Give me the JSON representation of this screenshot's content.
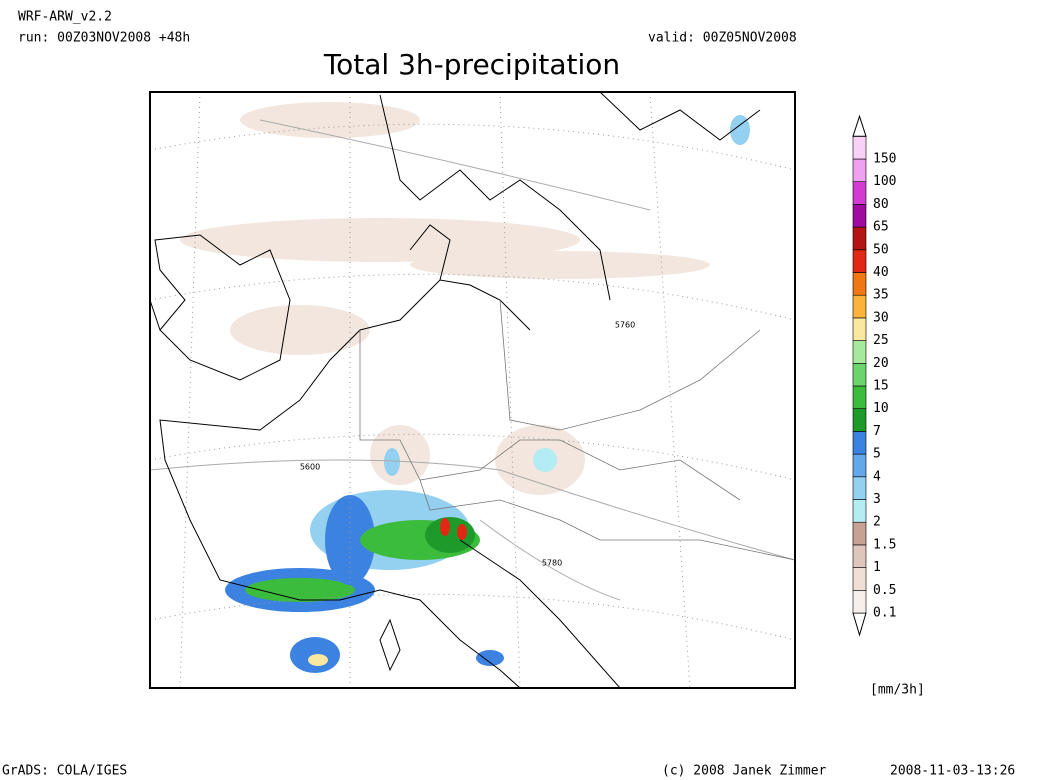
{
  "header": {
    "model": "WRF-ARW_v2.2",
    "run": "run: 00Z03NOV2008 +48h",
    "valid": "valid: 00Z05NOV2008"
  },
  "title": "Total 3h-precipitation",
  "contour_labels": [
    "5760",
    "5600",
    "5780"
  ],
  "colorbar": {
    "unit": "[mm/3h]",
    "levels": [
      {
        "label": "0.1",
        "color": "#f7efea"
      },
      {
        "label": "0.5",
        "color": "#efdfd5"
      },
      {
        "label": "1",
        "color": "#e0c6ba"
      },
      {
        "label": "1.5",
        "color": "#c8a195"
      },
      {
        "label": "2",
        "color": "#b4ecf4"
      },
      {
        "label": "3",
        "color": "#94d0f0"
      },
      {
        "label": "4",
        "color": "#64a8ea"
      },
      {
        "label": "5",
        "color": "#3c82e0"
      },
      {
        "label": "7",
        "color": "#1e9a2a"
      },
      {
        "label": "10",
        "color": "#3cbc3c"
      },
      {
        "label": "15",
        "color": "#6cd46c"
      },
      {
        "label": "20",
        "color": "#a6e89c"
      },
      {
        "label": "25",
        "color": "#fae8a0"
      },
      {
        "label": "30",
        "color": "#fab43c"
      },
      {
        "label": "35",
        "color": "#f07814"
      },
      {
        "label": "40",
        "color": "#e02814"
      },
      {
        "label": "50",
        "color": "#b41414"
      },
      {
        "label": "65",
        "color": "#a00aa0"
      },
      {
        "label": "80",
        "color": "#d23cd2"
      },
      {
        "label": "100",
        "color": "#f0a0f0"
      },
      {
        "label": "150",
        "color": "#f8d0f8"
      }
    ]
  },
  "footer": {
    "left": "GrADS: COLA/IGES",
    "center": "(c) 2008 Janek Zimmer",
    "right": "2008-11-03-13:26"
  }
}
